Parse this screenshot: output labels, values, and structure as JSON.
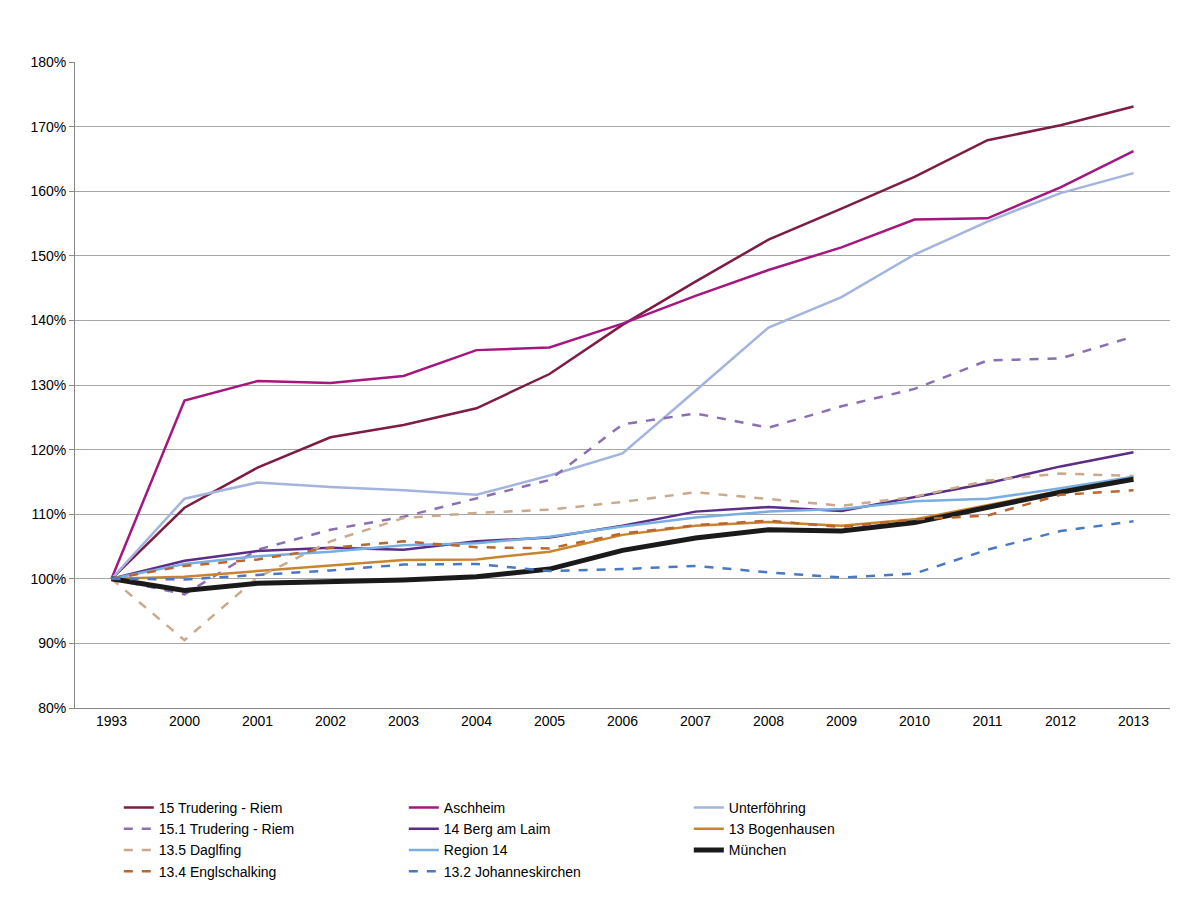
{
  "chart_data": {
    "type": "line",
    "categories": [
      "1993",
      "2000",
      "2001",
      "2002",
      "2003",
      "2004",
      "2005",
      "2006",
      "2007",
      "2008",
      "2009",
      "2010",
      "2011",
      "2012",
      "2013"
    ],
    "ylim": [
      80,
      180
    ],
    "yticks": [
      {
        "value": 80,
        "label": "80%"
      },
      {
        "value": 90,
        "label": "90%"
      },
      {
        "value": 100,
        "label": "100%"
      },
      {
        "value": 110,
        "label": "110%"
      },
      {
        "value": 120,
        "label": "120%"
      },
      {
        "value": 130,
        "label": "130%"
      },
      {
        "value": 140,
        "label": "140%"
      },
      {
        "value": 150,
        "label": "150%"
      },
      {
        "value": 160,
        "label": "160%"
      },
      {
        "value": 170,
        "label": "170%"
      },
      {
        "value": 180,
        "label": "180%"
      }
    ],
    "grid": true,
    "legend": "bottom",
    "series": [
      {
        "name": "15 Trudering - Riem",
        "color": "#7d1d45",
        "line_style": "solid",
        "values": [
          100,
          111,
          117.2,
          121.9,
          123.8,
          126.4,
          131.7,
          139.3,
          146,
          152.5,
          157.3,
          162.2,
          167.9,
          170.2,
          173.1
        ]
      },
      {
        "name": "Aschheim",
        "color": "#a3177f",
        "line_style": "solid",
        "values": [
          100,
          127.6,
          130.6,
          130.3,
          131.4,
          135.4,
          135.8,
          139.5,
          143.8,
          147.8,
          151.3,
          155.6,
          155.8,
          160.6,
          166.2
        ]
      },
      {
        "name": "Unterföhring",
        "color": "#a3b5de",
        "line_style": "solid",
        "values": [
          100,
          112.4,
          114.9,
          114.2,
          113.7,
          113.0,
          116.0,
          119.4,
          129.1,
          138.9,
          143.6,
          150.2,
          155.3,
          159.7,
          162.8
        ]
      },
      {
        "name": "15.1 Trudering - Riem",
        "color": "#8a70b2",
        "line_style": "dash",
        "values": [
          100,
          97.6,
          104.5,
          107.6,
          109.6,
          112.5,
          115.3,
          123.9,
          125.6,
          123.4,
          126.7,
          129.4,
          133.8,
          134.1,
          137.5
        ]
      },
      {
        "name": "14 Berg am Laim",
        "color": "#5b2d86",
        "line_style": "solid",
        "values": [
          100,
          102.8,
          104.3,
          104.8,
          104.5,
          105.8,
          106.4,
          108.2,
          110.4,
          111.1,
          110.5,
          112.6,
          114.8,
          117.4,
          119.6
        ]
      },
      {
        "name": "13 Bogenhausen",
        "color": "#c8842f",
        "line_style": "solid",
        "values": [
          100,
          100.3,
          101.2,
          102.1,
          102.9,
          103.0,
          104.2,
          106.8,
          108.2,
          108.8,
          108.2,
          109.2,
          111.4,
          113.7,
          115.8
        ]
      },
      {
        "name": "13.5 Daglfing",
        "color": "#c9aa8c",
        "line_style": "dash",
        "values": [
          100,
          90.5,
          100.2,
          105.8,
          109.4,
          110.2,
          110.7,
          111.9,
          113.4,
          112.4,
          111.3,
          112.7,
          115.2,
          116.3,
          115.9
        ]
      },
      {
        "name": "Region 14",
        "color": "#78afe0",
        "line_style": "solid",
        "values": [
          100,
          102.3,
          103.5,
          104.2,
          105.2,
          105.5,
          106.5,
          108.1,
          109.5,
          110.4,
          110.8,
          112.0,
          112.4,
          114.0,
          115.8
        ]
      },
      {
        "name": "München",
        "color": "#1a1a1a",
        "line_style": "thick",
        "values": [
          100,
          98.2,
          99.3,
          99.6,
          99.8,
          100.3,
          101.5,
          104.4,
          106.3,
          107.6,
          107.4,
          108.7,
          111.0,
          113.4,
          115.4
        ]
      },
      {
        "name": "13.4 Englschalking",
        "color": "#b9662f",
        "line_style": "dash",
        "values": [
          100,
          102.0,
          103.0,
          104.8,
          105.8,
          104.9,
          104.7,
          107.0,
          108.3,
          109.0,
          108.0,
          109.2,
          109.8,
          113.0,
          113.7
        ]
      },
      {
        "name": "13.2 Johanneskirchen",
        "color": "#4a78c2",
        "line_style": "dash",
        "values": [
          100,
          99.9,
          100.6,
          101.3,
          102.2,
          102.3,
          101.2,
          101.5,
          102.0,
          101.0,
          100.2,
          100.8,
          104.5,
          107.4,
          108.9
        ]
      }
    ]
  }
}
